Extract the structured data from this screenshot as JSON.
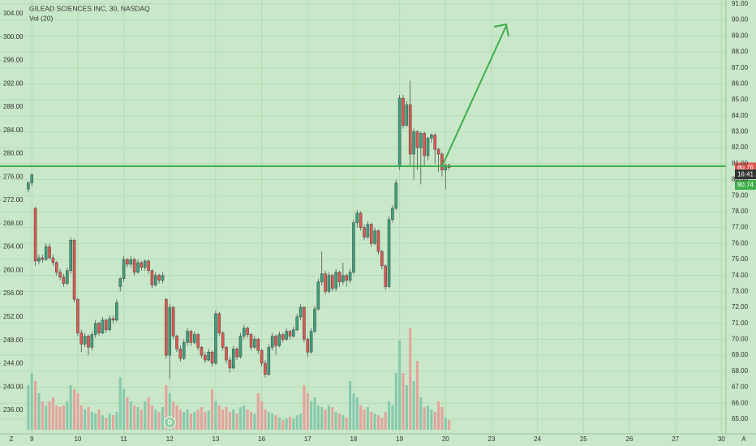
{
  "chart_data": {
    "type": "candlestick",
    "title": "GILEAD SCIENCES INC, 30, NASDAQ",
    "indicator": "Vol (20)",
    "up_color": "#3aa17e",
    "down_color": "#e0564f",
    "volume_up_color": "#86c9ad",
    "volume_down_color": "#e3a39b",
    "grid": true,
    "xlim": [
      -8,
      197.3
    ],
    "xticks": [
      {
        "value": 1,
        "label": "9"
      },
      {
        "value": 14,
        "label": "10"
      },
      {
        "value": 27,
        "label": "11"
      },
      {
        "value": 40,
        "label": "12"
      },
      {
        "value": 53,
        "label": "13"
      },
      {
        "value": 66,
        "label": "16"
      },
      {
        "value": 79,
        "label": "17"
      },
      {
        "value": 92,
        "label": "18"
      },
      {
        "value": 105,
        "label": "19"
      },
      {
        "value": 118,
        "label": "20"
      },
      {
        "value": 131,
        "label": "23"
      },
      {
        "value": 144,
        "label": "24"
      },
      {
        "value": 157,
        "label": "25"
      },
      {
        "value": 170,
        "label": "26"
      },
      {
        "value": 183,
        "label": "27"
      },
      {
        "value": 196,
        "label": "30"
      }
    ],
    "ylim": [
      64.08,
      91.25
    ],
    "yticks": [
      {
        "value": 65,
        "label": "65.00"
      },
      {
        "value": 66,
        "label": "66.00"
      },
      {
        "value": 67,
        "label": "67.00"
      },
      {
        "value": 68,
        "label": "68.00"
      },
      {
        "value": 69,
        "label": "69.00"
      },
      {
        "value": 70,
        "label": "70.00"
      },
      {
        "value": 71,
        "label": "71.00"
      },
      {
        "value": 72,
        "label": "72.00"
      },
      {
        "value": 73,
        "label": "73.00"
      },
      {
        "value": 74,
        "label": "74.00"
      },
      {
        "value": 75,
        "label": "75.00"
      },
      {
        "value": 76,
        "label": "76.00"
      },
      {
        "value": 77,
        "label": "77.00"
      },
      {
        "value": 78,
        "label": "78.00"
      },
      {
        "value": 79,
        "label": "79.00"
      },
      {
        "value": 80,
        "label": "80.00"
      },
      {
        "value": 81,
        "label": "81.00"
      },
      {
        "value": 82,
        "label": "82.00"
      },
      {
        "value": 83,
        "label": "83.00"
      },
      {
        "value": 84,
        "label": "84.00"
      },
      {
        "value": 85,
        "label": "85.00"
      },
      {
        "value": 86,
        "label": "86.00"
      },
      {
        "value": 87,
        "label": "87.00"
      },
      {
        "value": 88,
        "label": "88.00"
      },
      {
        "value": 89,
        "label": "89.00"
      },
      {
        "value": 90,
        "label": "90.00"
      },
      {
        "value": 91,
        "label": "91.00"
      }
    ],
    "y2lim": [
      231.96,
      306.36
    ],
    "y2ticks": [
      {
        "value": 236,
        "label": "236.00"
      },
      {
        "value": 240,
        "label": "240.00"
      },
      {
        "value": 244,
        "label": "244.00"
      },
      {
        "value": 248,
        "label": "248.00"
      },
      {
        "value": 252,
        "label": "252.00"
      },
      {
        "value": 256,
        "label": "256.00"
      },
      {
        "value": 260,
        "label": "260.00"
      },
      {
        "value": 264,
        "label": "264.00"
      },
      {
        "value": 268,
        "label": "268.00"
      },
      {
        "value": 272,
        "label": "272.00"
      },
      {
        "value": 276,
        "label": "276.00"
      },
      {
        "value": 280,
        "label": "280.00"
      },
      {
        "value": 284,
        "label": "284.00"
      },
      {
        "value": 288,
        "label": "288.00"
      },
      {
        "value": 292,
        "label": "292.00"
      },
      {
        "value": 296,
        "label": "296.00"
      },
      {
        "value": 300,
        "label": "300.00"
      },
      {
        "value": 304,
        "label": "304.00"
      }
    ],
    "hline": 80.84,
    "last_price": 80.76,
    "last_price_label": "80.76",
    "countdown": "16:41",
    "bid_label": "80.74",
    "dividend_marker": "D",
    "dividend_index": 40,
    "left_corner": "Z",
    "right_corner": "A",
    "candles": [
      [
        79.4,
        79.9,
        79.2,
        79.8
      ],
      [
        79.8,
        80.4,
        79.6,
        80.3
      ],
      [
        78.2,
        78.3,
        74.6,
        74.9
      ],
      [
        74.9,
        75.3,
        74.7,
        75.1
      ],
      [
        75.1,
        75.3,
        74.8,
        75.0
      ],
      [
        75.0,
        76.0,
        74.9,
        75.8
      ],
      [
        75.8,
        76.0,
        75.0,
        75.1
      ],
      [
        75.1,
        75.3,
        74.6,
        74.8
      ],
      [
        74.8,
        74.9,
        74.0,
        74.2
      ],
      [
        74.2,
        74.4,
        73.7,
        73.9
      ],
      [
        73.9,
        74.1,
        73.3,
        73.5
      ],
      [
        73.5,
        74.5,
        73.4,
        74.3
      ],
      [
        74.3,
        76.4,
        74.1,
        76.2
      ],
      [
        76.2,
        76.3,
        72.3,
        72.5
      ],
      [
        72.5,
        72.6,
        70.2,
        70.4
      ],
      [
        70.4,
        70.6,
        69.2,
        69.7
      ],
      [
        69.7,
        70.4,
        69.5,
        70.2
      ],
      [
        70.2,
        70.3,
        69.0,
        69.5
      ],
      [
        69.5,
        70.5,
        69.3,
        70.3
      ],
      [
        70.3,
        71.2,
        70.1,
        71.0
      ],
      [
        71.0,
        71.1,
        70.2,
        70.4
      ],
      [
        70.4,
        71.4,
        70.3,
        71.2
      ],
      [
        71.2,
        71.3,
        70.4,
        70.6
      ],
      [
        70.6,
        71.5,
        70.5,
        71.3
      ],
      [
        71.3,
        71.5,
        71.0,
        71.2
      ],
      [
        71.2,
        72.5,
        71.1,
        72.3
      ],
      [
        73.3,
        73.9,
        73.0,
        73.8
      ],
      [
        73.8,
        75.2,
        73.6,
        75.0
      ],
      [
        75.0,
        75.1,
        74.5,
        74.7
      ],
      [
        74.7,
        75.2,
        74.5,
        75.0
      ],
      [
        75.0,
        75.1,
        74.0,
        74.2
      ],
      [
        74.2,
        75.0,
        74.1,
        74.8
      ],
      [
        74.8,
        74.9,
        74.3,
        74.5
      ],
      [
        74.5,
        75.0,
        74.3,
        74.9
      ],
      [
        74.9,
        75.0,
        74.1,
        74.3
      ],
      [
        74.3,
        74.4,
        73.2,
        73.4
      ],
      [
        73.4,
        74.2,
        73.3,
        74.0
      ],
      [
        74.0,
        74.1,
        73.5,
        73.7
      ],
      [
        73.7,
        74.2,
        73.5,
        74.0
      ],
      [
        72.5,
        72.6,
        68.8,
        69.0
      ],
      [
        69.0,
        72.2,
        67.5,
        72.0
      ],
      [
        72.0,
        72.1,
        70.0,
        70.2
      ],
      [
        70.2,
        70.3,
        69.2,
        69.4
      ],
      [
        69.4,
        69.6,
        68.6,
        68.8
      ],
      [
        68.8,
        70.0,
        68.7,
        69.8
      ],
      [
        69.8,
        70.7,
        69.6,
        70.5
      ],
      [
        70.5,
        70.6,
        69.6,
        69.8
      ],
      [
        69.8,
        70.5,
        69.7,
        70.3
      ],
      [
        70.3,
        70.4,
        69.3,
        69.5
      ],
      [
        69.5,
        69.6,
        68.8,
        69.0
      ],
      [
        69.0,
        69.2,
        68.5,
        68.7
      ],
      [
        68.7,
        69.4,
        68.6,
        69.2
      ],
      [
        69.2,
        69.3,
        68.3,
        68.5
      ],
      [
        68.5,
        71.8,
        68.4,
        71.6
      ],
      [
        71.6,
        71.7,
        70.2,
        70.4
      ],
      [
        70.4,
        70.5,
        69.3,
        69.5
      ],
      [
        69.5,
        69.6,
        68.5,
        68.7
      ],
      [
        68.7,
        68.9,
        67.9,
        68.2
      ],
      [
        68.2,
        69.6,
        68.1,
        69.4
      ],
      [
        69.4,
        69.5,
        68.7,
        68.9
      ],
      [
        68.9,
        70.4,
        68.8,
        70.2
      ],
      [
        70.2,
        70.9,
        70.0,
        70.7
      ],
      [
        70.7,
        70.8,
        70.1,
        70.3
      ],
      [
        70.3,
        70.4,
        69.3,
        69.5
      ],
      [
        69.5,
        70.2,
        69.4,
        70.0
      ],
      [
        70.0,
        70.1,
        69.1,
        69.3
      ],
      [
        69.3,
        69.4,
        68.3,
        68.5
      ],
      [
        68.5,
        68.7,
        67.6,
        67.8
      ],
      [
        67.8,
        69.7,
        67.7,
        69.5
      ],
      [
        69.5,
        70.4,
        69.3,
        70.2
      ],
      [
        70.2,
        70.3,
        69.0,
        69.6
      ],
      [
        69.6,
        70.5,
        69.5,
        70.3
      ],
      [
        70.3,
        70.4,
        69.8,
        70.0
      ],
      [
        70.0,
        70.7,
        69.9,
        70.5
      ],
      [
        70.5,
        70.6,
        70.0,
        70.2
      ],
      [
        70.2,
        70.8,
        70.1,
        70.6
      ],
      [
        70.6,
        71.6,
        70.5,
        71.4
      ],
      [
        71.4,
        72.2,
        71.2,
        72.0
      ],
      [
        72.0,
        72.1,
        69.8,
        70.0
      ],
      [
        70.0,
        70.1,
        68.9,
        69.2
      ],
      [
        69.2,
        70.7,
        69.1,
        70.5
      ],
      [
        70.5,
        72.1,
        70.4,
        71.9
      ],
      [
        71.9,
        73.8,
        71.8,
        73.6
      ],
      [
        73.6,
        75.5,
        73.4,
        74.1
      ],
      [
        74.1,
        74.3,
        72.8,
        73.0
      ],
      [
        73.0,
        74.2,
        72.9,
        74.0
      ],
      [
        74.0,
        74.1,
        73.0,
        73.2
      ],
      [
        73.2,
        74.4,
        73.0,
        74.2
      ],
      [
        74.2,
        74.3,
        73.3,
        73.6
      ],
      [
        73.6,
        74.8,
        73.4,
        74.0
      ],
      [
        74.0,
        74.1,
        73.3,
        73.7
      ],
      [
        73.7,
        74.4,
        73.5,
        74.2
      ],
      [
        74.2,
        77.5,
        74.1,
        77.3
      ],
      [
        77.3,
        78.1,
        77.0,
        77.9
      ],
      [
        77.9,
        78.0,
        76.8,
        77.0
      ],
      [
        77.0,
        77.2,
        76.2,
        76.4
      ],
      [
        76.4,
        77.4,
        76.3,
        77.2
      ],
      [
        77.2,
        77.3,
        75.8,
        76.0
      ],
      [
        76.0,
        77.0,
        75.9,
        76.8
      ],
      [
        76.8,
        76.9,
        75.3,
        75.5
      ],
      [
        75.5,
        75.6,
        74.4,
        74.6
      ],
      [
        74.6,
        74.7,
        73.1,
        73.3
      ],
      [
        73.3,
        77.7,
        73.2,
        77.5
      ],
      [
        77.5,
        78.4,
        77.3,
        78.2
      ],
      [
        78.2,
        80.0,
        78.1,
        79.8
      ],
      [
        80.8,
        85.3,
        80.6,
        85.1
      ],
      [
        85.1,
        85.3,
        83.2,
        83.4
      ],
      [
        83.4,
        84.9,
        83.3,
        84.7
      ],
      [
        84.7,
        86.2,
        80.9,
        81.6
      ],
      [
        81.6,
        83.2,
        80.0,
        83.0
      ],
      [
        83.0,
        83.1,
        80.6,
        82.0
      ],
      [
        82.0,
        83.0,
        79.7,
        82.9
      ],
      [
        82.9,
        83.0,
        80.8,
        81.5
      ],
      [
        81.5,
        82.7,
        81.2,
        82.6
      ],
      [
        82.6,
        82.9,
        82.3,
        82.8
      ],
      [
        82.8,
        82.9,
        81.0,
        81.9
      ],
      [
        81.9,
        82.0,
        80.5,
        81.6
      ],
      [
        81.6,
        81.7,
        80.2,
        80.6
      ],
      [
        80.6,
        81.0,
        79.4,
        80.9
      ],
      [
        80.9,
        81.0,
        80.6,
        80.76
      ]
    ],
    "volume": [
      55,
      70,
      60,
      45,
      35,
      30,
      35,
      40,
      30,
      28,
      30,
      35,
      55,
      50,
      45,
      30,
      25,
      28,
      22,
      20,
      25,
      18,
      15,
      20,
      18,
      22,
      65,
      50,
      40,
      35,
      30,
      28,
      25,
      35,
      40,
      30,
      25,
      22,
      28,
      55,
      45,
      35,
      30,
      25,
      22,
      25,
      20,
      22,
      25,
      28,
      22,
      24,
      50,
      35,
      30,
      25,
      28,
      22,
      25,
      20,
      28,
      30,
      25,
      22,
      20,
      45,
      35,
      25,
      22,
      20,
      18,
      15,
      12,
      14,
      16,
      14,
      18,
      20,
      55,
      45,
      35,
      40,
      30,
      28,
      25,
      30,
      28,
      22,
      20,
      18,
      15,
      60,
      45,
      40,
      30,
      25,
      28,
      22,
      20,
      18,
      15,
      22,
      35,
      30,
      70,
      110,
      70,
      55,
      125,
      60,
      85,
      40,
      28,
      30,
      25,
      22,
      35,
      28,
      15,
      12
    ]
  }
}
